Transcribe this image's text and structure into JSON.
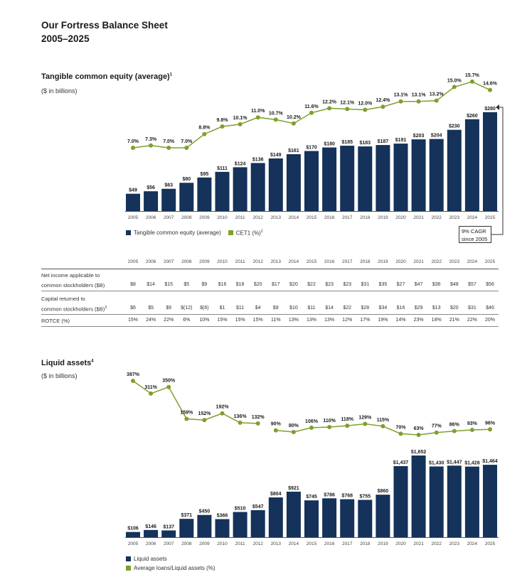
{
  "title": {
    "line1": "Our Fortress Balance Sheet",
    "line2": "2005–2025"
  },
  "colors": {
    "bar": "#14325a",
    "line": "#7f9f2e",
    "text": "#1a1a1a"
  },
  "years": [
    "2005",
    "2006",
    "2007",
    "2008",
    "2009",
    "2010",
    "2011",
    "2012",
    "2013",
    "2014",
    "2015",
    "2016",
    "2017",
    "2018",
    "2019",
    "2020",
    "2021",
    "2022",
    "2023",
    "2024",
    "2025"
  ],
  "chart_data": [
    {
      "type": "bar",
      "title": "Tangible common equity (average)",
      "title_sup": "1",
      "subtitle": "($ in billions)",
      "categories": [
        "2005",
        "2006",
        "2007",
        "2008",
        "2009",
        "2010",
        "2011",
        "2012",
        "2013",
        "2014",
        "2015",
        "2016",
        "2017",
        "2018",
        "2019",
        "2020",
        "2021",
        "2022",
        "2023",
        "2024",
        "2025"
      ],
      "series": [
        {
          "name": "Tangible common equity (average)",
          "type": "bar",
          "values": [
            49,
            56,
            63,
            80,
            95,
            111,
            124,
            136,
            149,
            161,
            170,
            180,
            185,
            183,
            187,
            191,
            203,
            204,
            230,
            260,
            280
          ],
          "labels": [
            "$49",
            "$56",
            "$63",
            "$80",
            "$95",
            "$111",
            "$124",
            "$136",
            "$149",
            "$161",
            "$170",
            "$180",
            "$185",
            "$183",
            "$187",
            "$191",
            "$203",
            "$204",
            "$230",
            "$260",
            "$280"
          ]
        },
        {
          "name": "CET1 (%)",
          "name_sup": "2",
          "type": "line",
          "values": [
            7.0,
            7.3,
            7.0,
            7.0,
            8.8,
            9.8,
            10.1,
            11.0,
            10.7,
            10.2,
            11.6,
            12.2,
            12.1,
            12.0,
            12.4,
            13.1,
            13.1,
            13.2,
            15.0,
            15.7,
            14.6
          ],
          "labels": [
            "7.0%",
            "7.3%",
            "7.0%",
            "7.0%",
            "8.8%",
            "9.8%",
            "10.1%",
            "11.0%",
            "10.7%",
            "10.2%",
            "11.6%",
            "12.2%",
            "12.1%",
            "12.0%",
            "12.4%",
            "13.1%",
            "13.1%",
            "13.2%",
            "15.0%",
            "15.7%",
            "14.6%"
          ]
        }
      ],
      "annotation": {
        "line1": "9% CAGR",
        "line2": "since 2005"
      },
      "legend": "bottom-left",
      "grid": false
    },
    {
      "type": "bar",
      "title": "Liquid assets",
      "title_sup": "4",
      "subtitle": "($ in billions)",
      "categories": [
        "2005",
        "2006",
        "2007",
        "2008",
        "2009",
        "2010",
        "2011",
        "2012",
        "2013",
        "2014",
        "2015",
        "2016",
        "2017",
        "2018",
        "2019",
        "2020",
        "2021",
        "2022",
        "2023",
        "2024",
        "2025"
      ],
      "series": [
        {
          "name": "Liquid assets",
          "type": "bar",
          "values": [
            106,
            146,
            137,
            371,
            450,
            366,
            510,
            547,
            804,
            921,
            745,
            786,
            768,
            755,
            860,
            1437,
            1652,
            1430,
            1447,
            1428,
            1464
          ],
          "labels": [
            "$106",
            "$146",
            "$137",
            "$371",
            "$450",
            "$366",
            "$510",
            "$547",
            "$804",
            "$921",
            "$745",
            "$786",
            "$768",
            "$755",
            "$860",
            "$1,437",
            "$1,652",
            "$1,430",
            "$1,447",
            "$1,428",
            "$1,464"
          ]
        },
        {
          "name": "Average loans/Liquid assets (%)",
          "type": "line",
          "values": [
            387,
            311,
            350,
            159,
            152,
            192,
            136,
            132,
            90,
            80,
            106,
            110,
            118,
            129,
            115,
            70,
            63,
            77,
            86,
            93,
            96
          ],
          "labels": [
            "387%",
            "311%",
            "350%",
            "159%",
            "152%",
            "192%",
            "136%",
            "132%",
            "90%",
            "80%",
            "106%",
            "110%",
            "118%",
            "129%",
            "115%",
            "70%",
            "63%",
            "77%",
            "86%",
            "93%",
            "96%"
          ],
          "break_after": "2012"
        }
      ],
      "legend": "bottom-left",
      "grid": false
    }
  ],
  "table": {
    "rows": [
      {
        "label1": "Net income applicable to",
        "label2": "common stockholders ($B)",
        "sup": "",
        "values": [
          "$8",
          "$14",
          "$15",
          "$5",
          "$9",
          "$16",
          "$18",
          "$20",
          "$17",
          "$20",
          "$22",
          "$23",
          "$23",
          "$31",
          "$35",
          "$27",
          "$47",
          "$36",
          "$48",
          "$57",
          "$56"
        ]
      },
      {
        "label1": "Capital returned to",
        "label2": "common stockholders ($B)",
        "sup": "3",
        "values": [
          "$6",
          "$5",
          "$9",
          "$(12)",
          "$(6)",
          "$1",
          "$11",
          "$4",
          "$9",
          "$10",
          "$11",
          "$14",
          "$22",
          "$28",
          "$34",
          "$16",
          "$29",
          "$13",
          "$20",
          "$31",
          "$46"
        ]
      },
      {
        "label1": "",
        "label2": "ROTCE (%)",
        "sup": "",
        "values": [
          "15%",
          "24%",
          "22%",
          "6%",
          "10%",
          "15%",
          "15%",
          "15%",
          "11%",
          "13%",
          "13%",
          "13%",
          "12%",
          "17%",
          "19%",
          "14%",
          "23%",
          "18%",
          "21%",
          "22%",
          "20%"
        ]
      }
    ]
  }
}
